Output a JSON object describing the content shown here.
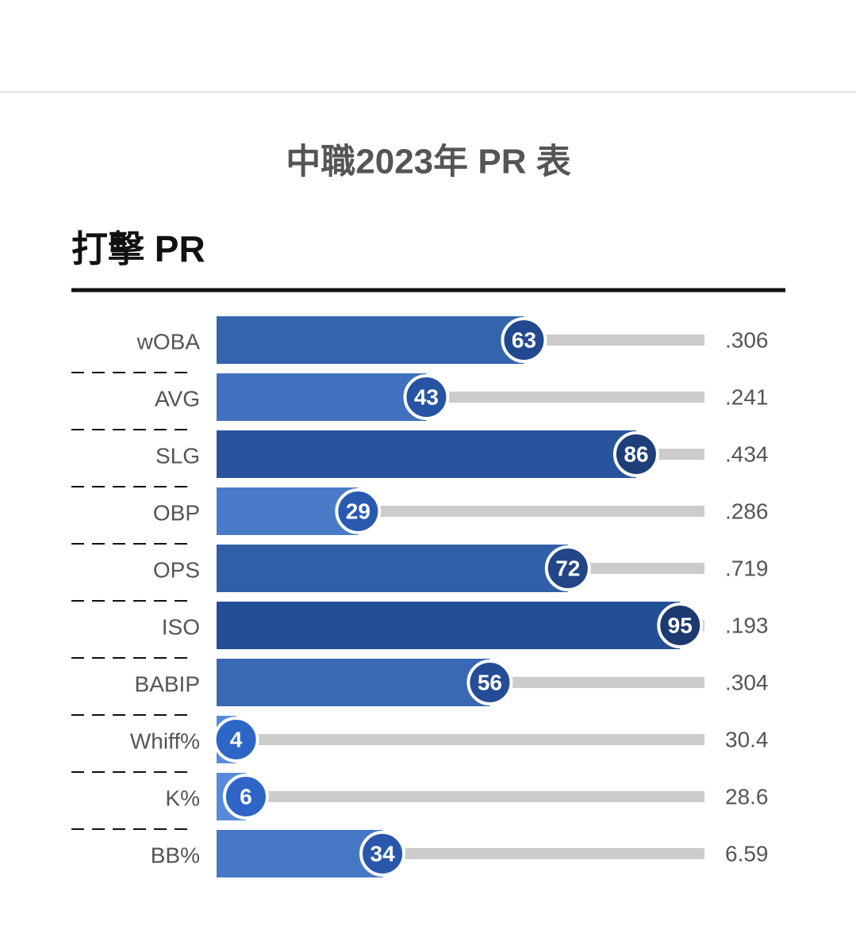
{
  "chart_data": {
    "type": "pr-bar",
    "title": "中職2023年 PR 表",
    "subtitle": "打擊 PR",
    "categories": [
      "wOBA",
      "AVG",
      "SLG",
      "OBP",
      "OPS",
      "ISO",
      "BABIP",
      "Whiff%",
      "K%",
      "BB%"
    ],
    "values": [
      63,
      43,
      86,
      29,
      72,
      95,
      56,
      4,
      6,
      34
    ],
    "stats": [
      {
        "value": 0.306,
        "label": ".306"
      },
      {
        "value": 0.241,
        "label": ".241"
      },
      {
        "value": 0.434,
        "label": ".434"
      },
      {
        "value": 0.286,
        "label": ".286"
      },
      {
        "value": 0.719,
        "label": ".719"
      },
      {
        "value": 0.193,
        "label": ".193"
      },
      {
        "value": 0.304,
        "label": ".304"
      },
      30.4,
      28.6,
      6.59
    ],
    "xlim": [
      0,
      100
    ]
  }
}
